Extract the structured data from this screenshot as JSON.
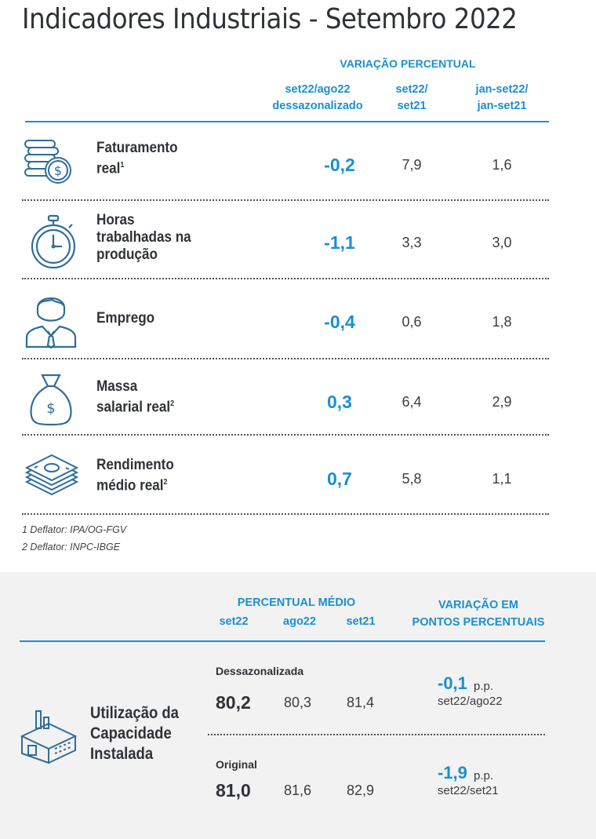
{
  "title": "Indicadores Industriais - Setembro 2022",
  "top_table": {
    "group_header": "VARIAÇÃO PERCENTUAL",
    "col1": [
      "set22/ago22",
      "dessazonalizado"
    ],
    "col2": [
      "set22/",
      "set21"
    ],
    "col3": [
      "jan-set22/",
      "jan-set21"
    ],
    "rows": [
      {
        "label": [
          "Faturamento",
          "real"
        ],
        "sup": "1",
        "icon": "coins-icon",
        "v1": "-0,2",
        "v2": "7,9",
        "v3": "1,6"
      },
      {
        "label": [
          "Horas",
          "trabalhadas na",
          "produção"
        ],
        "sup": "",
        "icon": "stopwatch-icon",
        "v1": "-1,1",
        "v2": "3,3",
        "v3": "3,0"
      },
      {
        "label": [
          "Emprego"
        ],
        "sup": "",
        "icon": "worker-icon",
        "v1": "-0,4",
        "v2": "0,6",
        "v3": "1,8"
      },
      {
        "label": [
          "Massa",
          "salarial real"
        ],
        "sup": "2",
        "icon": "money-bag-icon",
        "v1": "0,3",
        "v2": "6,4",
        "v3": "2,9"
      },
      {
        "label": [
          "Rendimento",
          "médio real"
        ],
        "sup": "2",
        "icon": "banknotes-icon",
        "v1": "0,7",
        "v2": "5,8",
        "v3": "1,1"
      }
    ],
    "footnotes": [
      "1 Deflator: IPA/OG-FGV",
      "2 Deflator: INPC-IBGE"
    ]
  },
  "capacity": {
    "group_header_pm": "PERCENTUAL MÉDIO",
    "cols": [
      "set22",
      "ago22",
      "set21"
    ],
    "group_header_var": [
      "VARIAÇÃO EM",
      "PONTOS PERCENTUAIS"
    ],
    "label": [
      "Utilização da",
      "Capacidade",
      "Instalada"
    ],
    "icon": "factory-icon",
    "seasonal": {
      "sublabel": "Dessazonalizada",
      "set22": "80,2",
      "ago22": "80,3",
      "set21": "81,4",
      "pp": "-0,1",
      "pp_unit": "p.p.",
      "pp_desc": "set22/ago22"
    },
    "original": {
      "sublabel": "Original",
      "set22": "81,0",
      "ago22": "81,6",
      "set21": "82,9",
      "pp": "-1,9",
      "pp_unit": "p.p.",
      "pp_desc": "set22/set21"
    }
  },
  "colors": {
    "accent": "#1b8fd0",
    "text": "#2f3236",
    "panel": "#f2f2f2"
  }
}
